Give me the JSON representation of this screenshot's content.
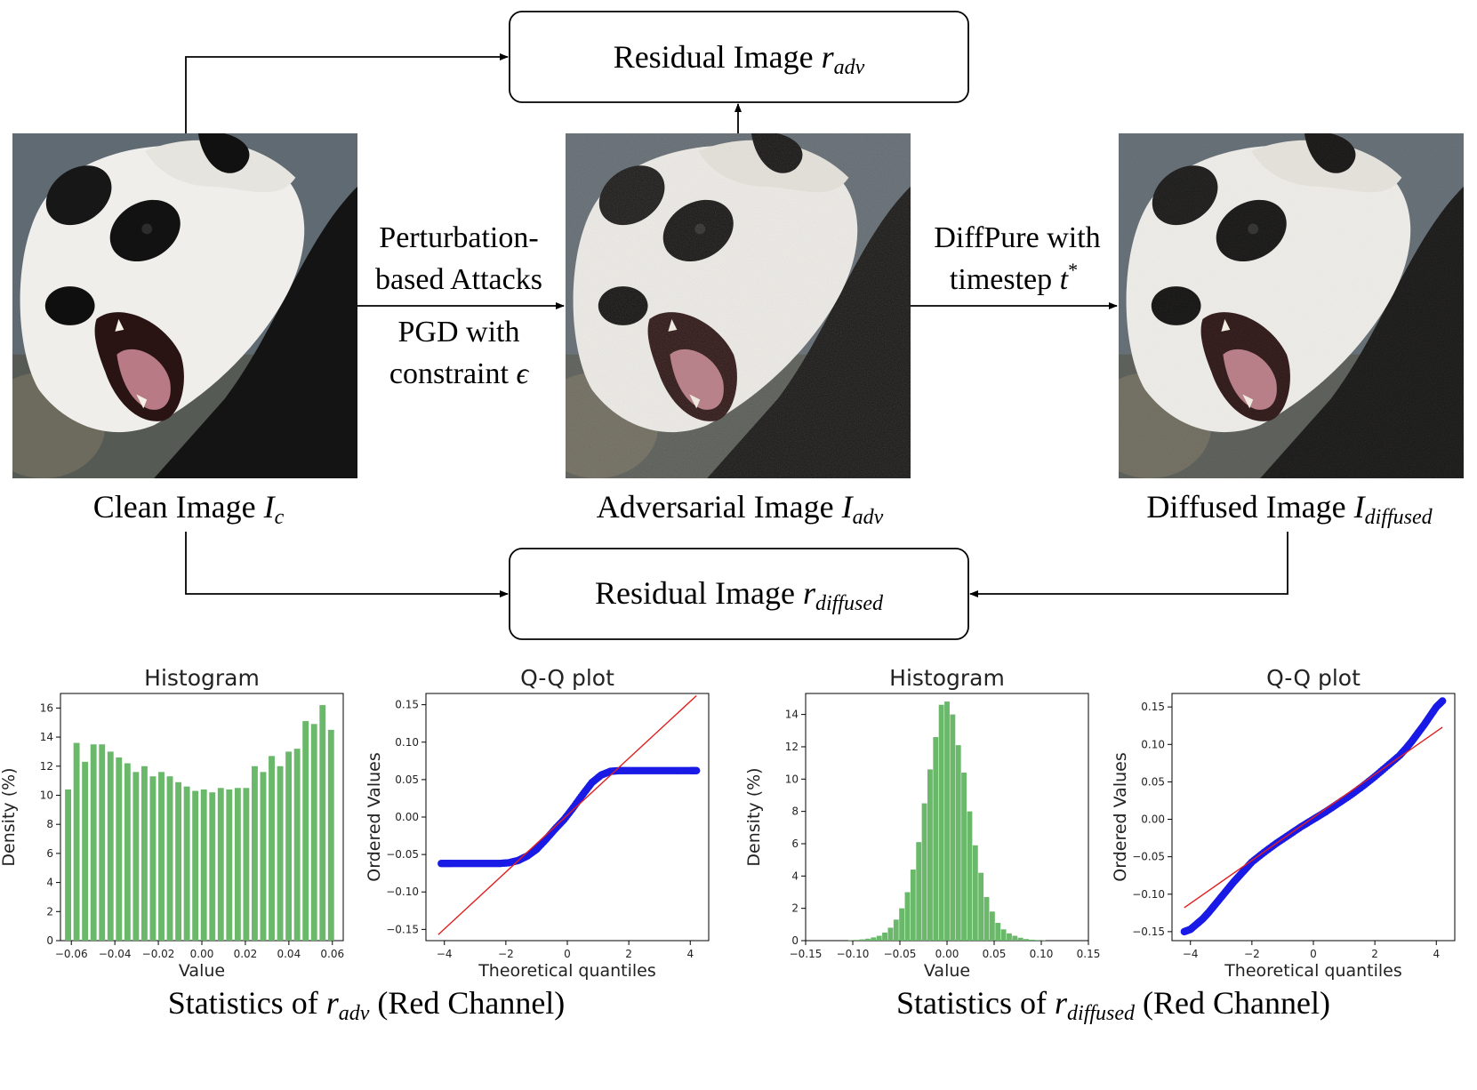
{
  "diagram": {
    "residual_adv_box": {
      "label": "Residual Image ",
      "sym": "r",
      "sub": "adv"
    },
    "residual_diffused_box": {
      "label": "Residual Image ",
      "sym": "r",
      "sub": "diffused"
    },
    "clean_caption": {
      "label": "Clean Image ",
      "sym": "I",
      "sub": "c"
    },
    "adv_caption": {
      "label": "Adversarial Image ",
      "sym": "I",
      "sub": "adv"
    },
    "diffused_caption": {
      "label": "Diffused Image ",
      "sym": "I",
      "sub": "diffused"
    },
    "attack_label": {
      "line1": "Perturbation-",
      "line2": "based Attacks",
      "line3": "PGD with",
      "line4": "constraint ",
      "sym": "ϵ"
    },
    "diffpure_label": {
      "line1": "DiffPure with",
      "line2": "timestep ",
      "sym": "t",
      "sup": "*"
    }
  },
  "stats_captions": {
    "left": {
      "prefix": "Statistics of ",
      "sym": "r",
      "sub": "adv",
      "suffix": " (Red Channel)"
    },
    "right": {
      "prefix": "Statistics of ",
      "sym": "r",
      "sub": "diffused",
      "suffix": " (Red Channel)"
    }
  },
  "colors": {
    "bar": "#6ab86a",
    "qq_points": "#1a1ae6",
    "qq_line": "#e02020"
  },
  "chart_data": [
    {
      "id": "hist_adv",
      "type": "bar",
      "title": "Histogram",
      "xlabel": "Value",
      "ylabel": "Density (%)",
      "xlim": [
        -0.065,
        0.065
      ],
      "ylim": [
        0,
        17
      ],
      "xticks": [
        -0.06,
        -0.04,
        -0.02,
        0.0,
        0.02,
        0.04,
        0.06
      ],
      "xtick_labels": [
        "−0.06",
        "−0.04",
        "−0.02",
        "0.00",
        "0.02",
        "0.04",
        "0.06"
      ],
      "yticks": [
        0,
        2,
        4,
        6,
        8,
        10,
        12,
        14,
        16
      ],
      "ytick_labels": [
        "0",
        "2",
        "4",
        "6",
        "8",
        "10",
        "12",
        "14",
        "16"
      ],
      "bin_width": 0.0039,
      "x": [
        -0.0615,
        -0.0576,
        -0.0537,
        -0.0498,
        -0.0459,
        -0.042,
        -0.0381,
        -0.0342,
        -0.0303,
        -0.0264,
        -0.0225,
        -0.0186,
        -0.0147,
        -0.0108,
        -0.0069,
        -0.003,
        0.0009,
        0.0048,
        0.0087,
        0.0126,
        0.0165,
        0.0204,
        0.0243,
        0.0282,
        0.0321,
        0.036,
        0.0399,
        0.0438,
        0.0477,
        0.0516,
        0.0555,
        0.0594
      ],
      "values": [
        10.4,
        13.6,
        12.3,
        13.5,
        13.5,
        13.0,
        12.6,
        12.2,
        11.6,
        12.0,
        11.3,
        11.6,
        11.3,
        10.9,
        10.6,
        10.3,
        10.4,
        10.2,
        10.5,
        10.4,
        10.5,
        10.5,
        12.0,
        11.6,
        12.7,
        12.0,
        13.0,
        13.2,
        15.1,
        14.9,
        16.2,
        14.5
      ],
      "bar_color": "#6ab86a"
    },
    {
      "id": "qq_adv",
      "type": "scatter",
      "title": "Q-Q plot",
      "xlabel": "Theoretical quantiles",
      "ylabel": "Ordered Values",
      "xlim": [
        -4.6,
        4.6
      ],
      "ylim": [
        -0.165,
        0.165
      ],
      "xticks": [
        -4,
        -2,
        0,
        2,
        4
      ],
      "xtick_labels": [
        "−4",
        "−2",
        "0",
        "2",
        "4"
      ],
      "yticks": [
        -0.15,
        -0.1,
        -0.05,
        0.0,
        0.05,
        0.1,
        0.15
      ],
      "ytick_labels": [
        "−0.15",
        "−0.10",
        "−0.05",
        "0.00",
        "0.05",
        "0.10",
        "0.15"
      ],
      "points_x": [
        -4.1,
        -3.8,
        -3.4,
        -3.0,
        -2.6,
        -2.2,
        -1.9,
        -1.6,
        -1.3,
        -1.0,
        -0.7,
        -0.4,
        -0.1,
        0.2,
        0.5,
        0.8,
        1.1,
        1.4,
        1.7,
        2.0,
        2.4,
        2.8,
        3.2,
        3.6,
        4.0,
        4.2
      ],
      "points_y": [
        -0.062,
        -0.062,
        -0.062,
        -0.062,
        -0.062,
        -0.062,
        -0.061,
        -0.058,
        -0.052,
        -0.043,
        -0.03,
        -0.016,
        -0.003,
        0.013,
        0.03,
        0.046,
        0.056,
        0.061,
        0.062,
        0.062,
        0.062,
        0.062,
        0.062,
        0.062,
        0.062,
        0.062
      ],
      "line_x": [
        -4.2,
        4.2
      ],
      "line_y": [
        -0.157,
        0.162
      ],
      "point_color": "#1a1ae6",
      "line_color": "#e02020"
    },
    {
      "id": "hist_diffused",
      "type": "bar",
      "title": "Histogram",
      "xlabel": "Value",
      "ylabel": "Density (%)",
      "xlim": [
        -0.15,
        0.15
      ],
      "ylim": [
        0,
        15.3
      ],
      "xticks": [
        -0.15,
        -0.1,
        -0.05,
        0.0,
        0.05,
        0.1,
        0.15
      ],
      "xtick_labels": [
        "−0.15",
        "−0.10",
        "−0.05",
        "0.00",
        "0.05",
        "0.10",
        "0.15"
      ],
      "yticks": [
        0,
        2,
        4,
        6,
        8,
        10,
        12,
        14
      ],
      "ytick_labels": [
        "0",
        "2",
        "4",
        "6",
        "8",
        "10",
        "12",
        "14"
      ],
      "bin_width": 0.006,
      "x": [
        -0.102,
        -0.096,
        -0.09,
        -0.084,
        -0.078,
        -0.072,
        -0.066,
        -0.06,
        -0.054,
        -0.048,
        -0.042,
        -0.036,
        -0.03,
        -0.024,
        -0.018,
        -0.012,
        -0.006,
        0.0,
        0.006,
        0.012,
        0.018,
        0.024,
        0.03,
        0.036,
        0.042,
        0.048,
        0.054,
        0.06,
        0.066,
        0.072,
        0.078,
        0.084,
        0.09,
        0.096,
        0.102
      ],
      "values": [
        0.02,
        0.05,
        0.08,
        0.12,
        0.2,
        0.3,
        0.5,
        0.8,
        1.3,
        2.0,
        3.0,
        4.4,
        6.1,
        8.5,
        10.6,
        12.6,
        14.6,
        14.8,
        14.0,
        12.1,
        10.4,
        8.0,
        5.9,
        4.2,
        2.7,
        1.8,
        1.1,
        0.7,
        0.45,
        0.3,
        0.18,
        0.1,
        0.06,
        0.04,
        0.02
      ],
      "bar_color": "#6ab86a"
    },
    {
      "id": "qq_diffused",
      "type": "scatter",
      "title": "Q-Q plot",
      "xlabel": "Theoretical quantiles",
      "ylabel": "Ordered Values",
      "xlim": [
        -4.6,
        4.6
      ],
      "ylim": [
        -0.162,
        0.168
      ],
      "xticks": [
        -4,
        -2,
        0,
        2,
        4
      ],
      "xtick_labels": [
        "−4",
        "−2",
        "0",
        "2",
        "4"
      ],
      "yticks": [
        -0.15,
        -0.1,
        -0.05,
        0.0,
        0.05,
        0.1,
        0.15
      ],
      "ytick_labels": [
        "−0.15",
        "−0.10",
        "−0.05",
        "0.00",
        "0.05",
        "0.10",
        "0.15"
      ],
      "points_x": [
        -4.2,
        -4.0,
        -3.8,
        -3.6,
        -3.4,
        -3.2,
        -3.0,
        -2.8,
        -2.6,
        -2.4,
        -2.2,
        -2.0,
        -1.6,
        -1.2,
        -0.8,
        -0.4,
        0.0,
        0.4,
        0.8,
        1.2,
        1.6,
        2.0,
        2.4,
        2.8,
        3.0,
        3.2,
        3.4,
        3.6,
        3.8,
        4.0,
        4.2
      ],
      "points_y": [
        -0.15,
        -0.147,
        -0.14,
        -0.133,
        -0.124,
        -0.114,
        -0.104,
        -0.094,
        -0.084,
        -0.075,
        -0.066,
        -0.057,
        -0.044,
        -0.032,
        -0.021,
        -0.01,
        0.0,
        0.01,
        0.021,
        0.032,
        0.044,
        0.057,
        0.071,
        0.085,
        0.094,
        0.104,
        0.115,
        0.126,
        0.138,
        0.15,
        0.158
      ],
      "line_x": [
        -4.2,
        4.2
      ],
      "line_y": [
        -0.118,
        0.123
      ],
      "point_color": "#1a1ae6",
      "line_color": "#e02020"
    }
  ]
}
